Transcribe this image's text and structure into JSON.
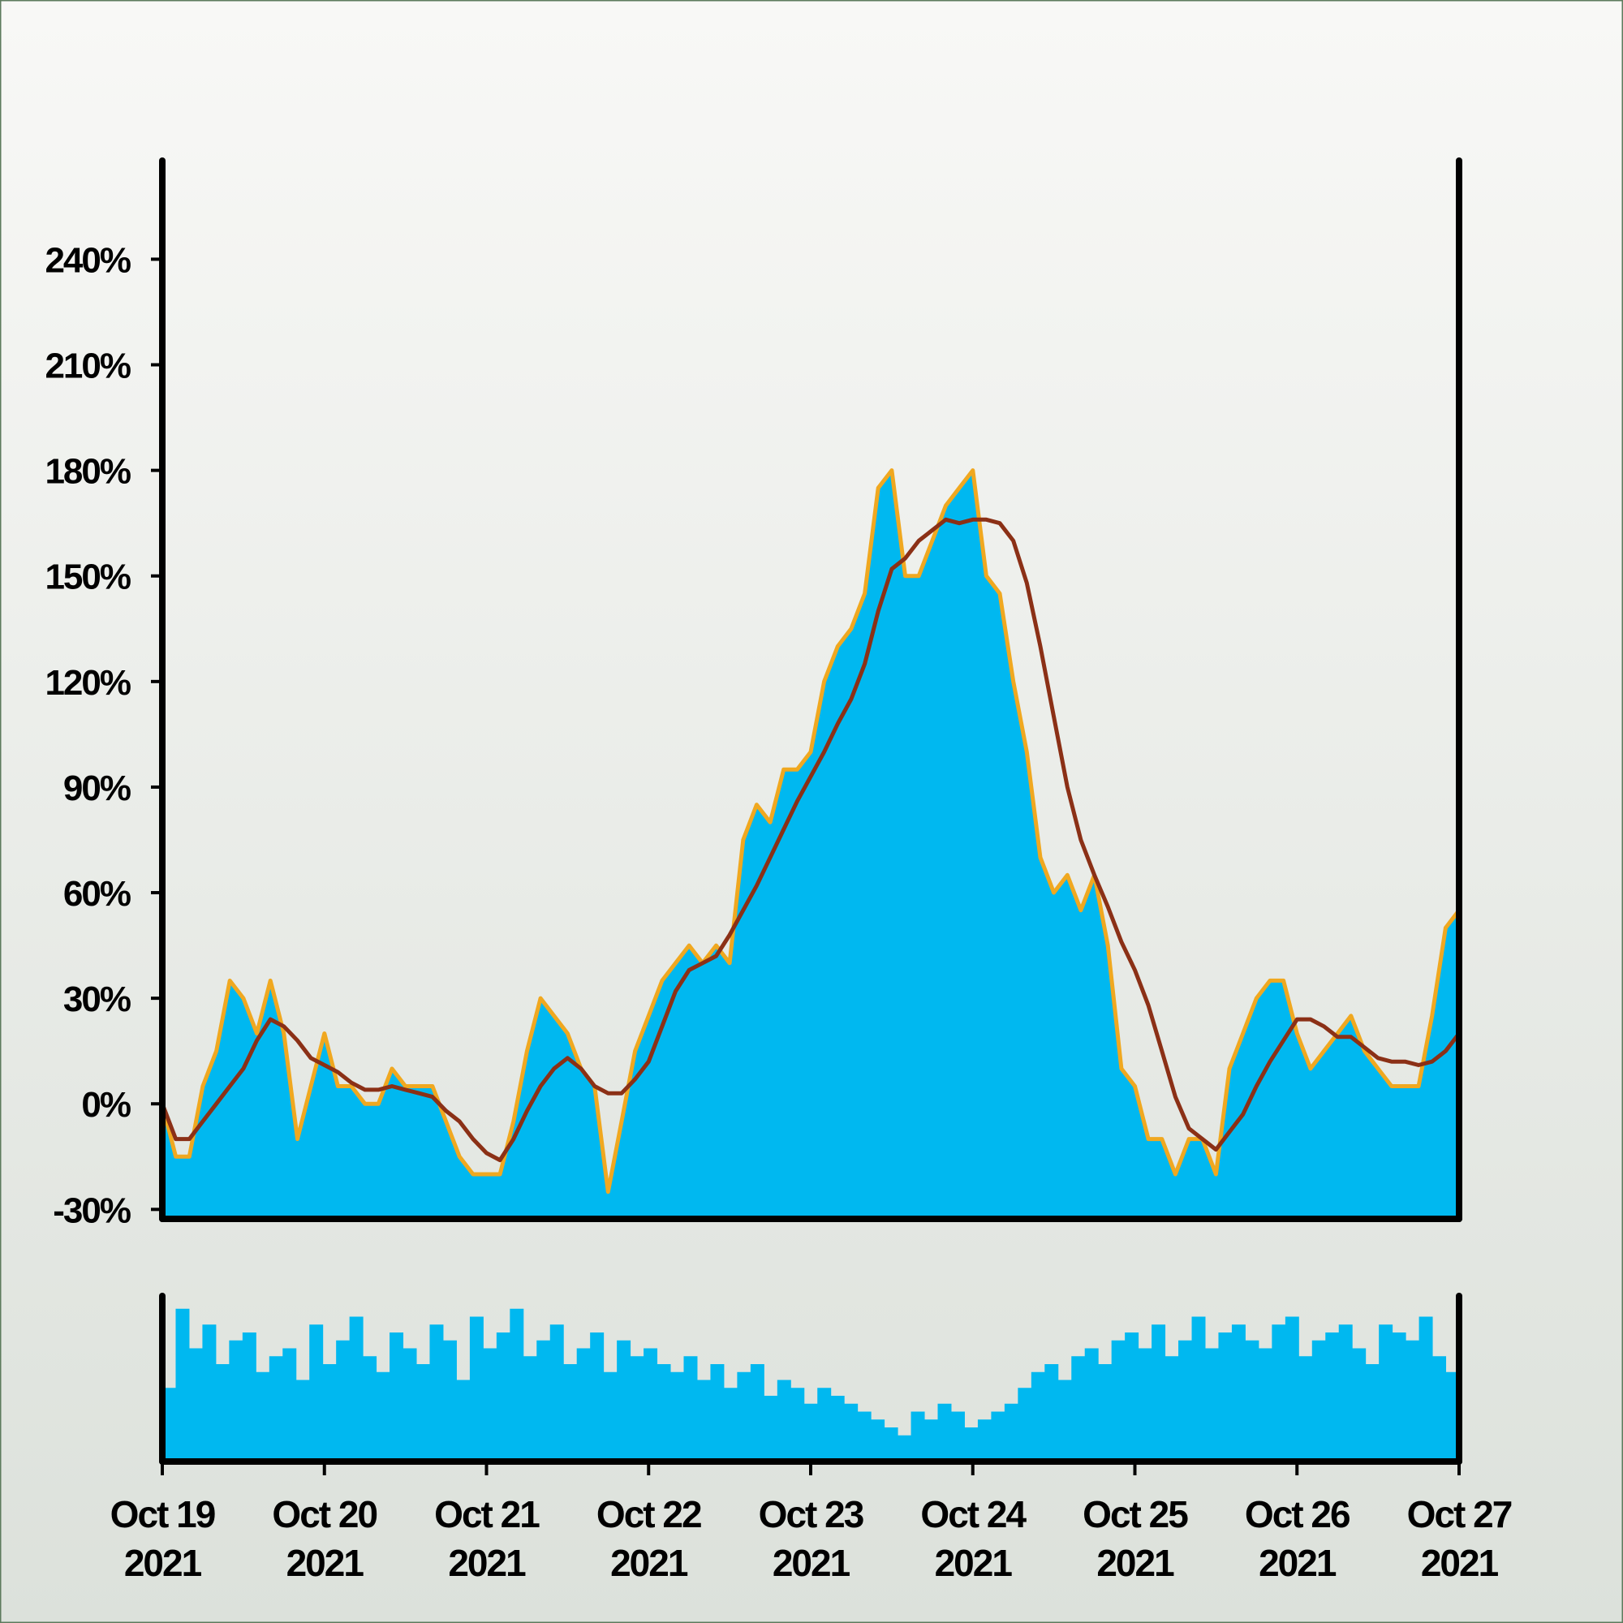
{
  "chart_data": {
    "type": "area",
    "xlim": [
      "2021-10-19",
      "2021-10-27"
    ],
    "xticks": [
      {
        "value": "2021-10-19",
        "label": [
          "Oct 19",
          "2021"
        ]
      },
      {
        "value": "2021-10-20",
        "label": [
          "Oct 20",
          "2021"
        ]
      },
      {
        "value": "2021-10-21",
        "label": [
          "Oct 21",
          "2021"
        ]
      },
      {
        "value": "2021-10-22",
        "label": [
          "Oct 22",
          "2021"
        ]
      },
      {
        "value": "2021-10-23",
        "label": [
          "Oct 23",
          "2021"
        ]
      },
      {
        "value": "2021-10-24",
        "label": [
          "Oct 24",
          "2021"
        ]
      },
      {
        "value": "2021-10-25",
        "label": [
          "Oct 25",
          "2021"
        ]
      },
      {
        "value": "2021-10-26",
        "label": [
          "Oct 26",
          "2021"
        ]
      },
      {
        "value": "2021-10-27",
        "label": [
          "Oct 27",
          "2021"
        ]
      }
    ],
    "ylim": [
      -32,
      268
    ],
    "yticks": [
      {
        "value": -30,
        "label": "-30%"
      },
      {
        "value": 0,
        "label": "0%"
      },
      {
        "value": 30,
        "label": "30%"
      },
      {
        "value": 60,
        "label": "60%"
      },
      {
        "value": 90,
        "label": "90%"
      },
      {
        "value": 120,
        "label": "120%"
      },
      {
        "value": 150,
        "label": "150%"
      },
      {
        "value": 180,
        "label": "180%"
      },
      {
        "value": 210,
        "label": "210%"
      },
      {
        "value": 240,
        "label": "240%"
      }
    ],
    "series": [
      {
        "color": "#f0a820",
        "fill": "#00b8f0",
        "values": [
          0,
          -15,
          -15,
          5,
          15,
          35,
          30,
          20,
          35,
          20,
          -10,
          5,
          20,
          5,
          5,
          0,
          0,
          10,
          5,
          5,
          5,
          -5,
          -15,
          -20,
          -20,
          -20,
          -5,
          15,
          30,
          25,
          20,
          10,
          5,
          -25,
          -5,
          15,
          25,
          35,
          40,
          45,
          40,
          45,
          40,
          75,
          85,
          80,
          95,
          95,
          100,
          120,
          130,
          135,
          145,
          175,
          180,
          150,
          150,
          160,
          170,
          175,
          180,
          150,
          145,
          120,
          100,
          70,
          60,
          65,
          55,
          65,
          45,
          10,
          5,
          -10,
          -10,
          -20,
          -10,
          -10,
          -20,
          10,
          20,
          30,
          35,
          35,
          20,
          10,
          15,
          20,
          25,
          15,
          10,
          5,
          5,
          5,
          25,
          50,
          55
        ]
      },
      {
        "color": "#8b3016",
        "values": [
          0,
          -10,
          -10,
          -5,
          0,
          5,
          10,
          18,
          24,
          22,
          18,
          13,
          11,
          9,
          6,
          4,
          4,
          5,
          4,
          3,
          2,
          -2,
          -5,
          -10,
          -14,
          -16,
          -10,
          -2,
          5,
          10,
          13,
          10,
          5,
          3,
          3,
          7,
          12,
          22,
          32,
          38,
          40,
          42,
          48,
          55,
          62,
          70,
          78,
          86,
          93,
          100,
          108,
          115,
          125,
          140,
          152,
          155,
          160,
          163,
          166,
          165,
          166,
          166,
          165,
          160,
          148,
          130,
          110,
          90,
          75,
          65,
          56,
          46,
          38,
          28,
          15,
          2,
          -7,
          -10,
          -13,
          -8,
          -3,
          5,
          12,
          18,
          24,
          24,
          22,
          19,
          19,
          16,
          13,
          12,
          12,
          11,
          12,
          15,
          20
        ]
      }
    ],
    "volume": {
      "color": "#00b8f0",
      "ylim": [
        0,
        100
      ],
      "values": [
        45,
        95,
        70,
        85,
        60,
        75,
        80,
        55,
        65,
        70,
        50,
        85,
        60,
        75,
        90,
        65,
        55,
        80,
        70,
        60,
        85,
        75,
        50,
        90,
        70,
        80,
        95,
        65,
        75,
        85,
        60,
        70,
        80,
        55,
        75,
        65,
        70,
        60,
        55,
        65,
        50,
        60,
        45,
        55,
        60,
        40,
        50,
        45,
        35,
        45,
        40,
        35,
        30,
        25,
        20,
        15,
        30,
        25,
        35,
        30,
        20,
        25,
        30,
        35,
        45,
        55,
        60,
        50,
        65,
        70,
        60,
        75,
        80,
        70,
        85,
        65,
        75,
        90,
        70,
        80,
        85,
        75,
        70,
        85,
        90,
        65,
        75,
        80,
        85,
        70,
        60,
        85,
        80,
        75,
        90,
        65,
        55
      ]
    }
  }
}
